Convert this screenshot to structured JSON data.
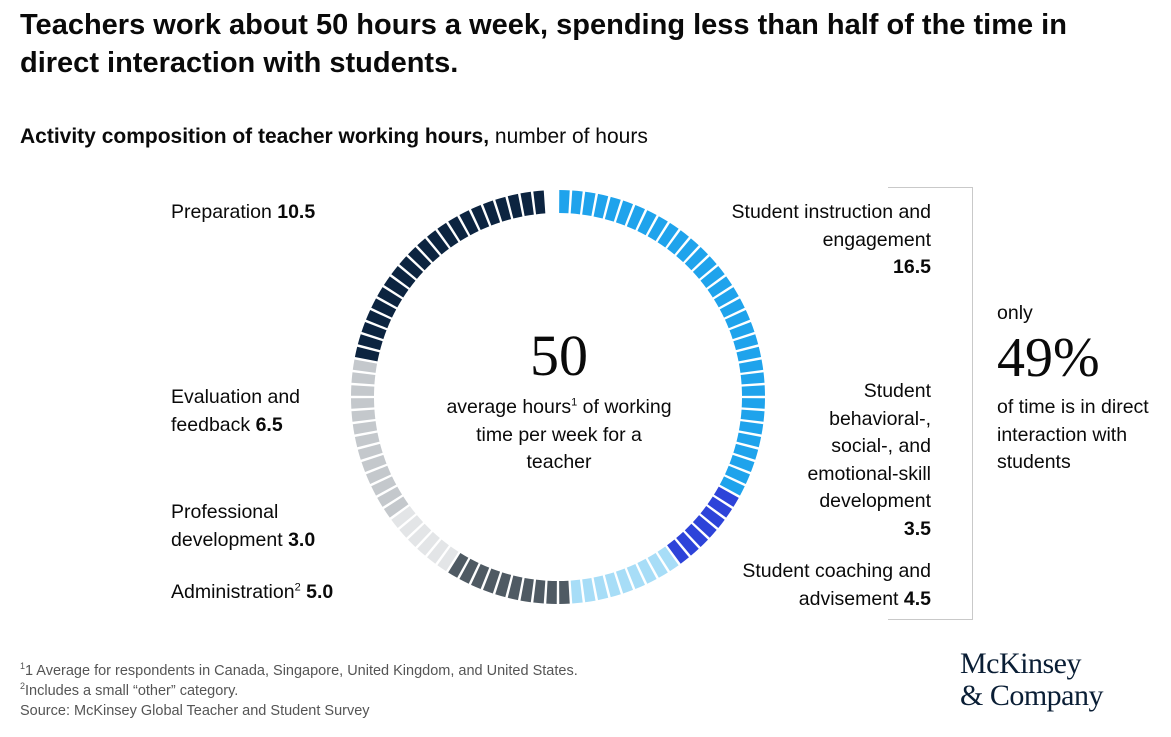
{
  "title": "Teachers work about 50 hours a week, spending less than half of the time in direct interaction with students.",
  "subtitle": {
    "bold": "Activity composition of teacher working hours,",
    "regular": " number of hours"
  },
  "center": {
    "value": "50",
    "text_before_sup": "average hours",
    "sup": "1",
    "text_after_sup": " of working time per week for a teacher"
  },
  "callout": {
    "only": "only",
    "percent": "49%",
    "text": "of time is in direct interaction with students"
  },
  "labels": {
    "preparation": {
      "name": "Preparation ",
      "value": "10.5"
    },
    "evaluation": {
      "name": "Evaluation and feedback ",
      "value": "6.5"
    },
    "professional": {
      "name": "Professional development ",
      "value": "3.0"
    },
    "administration": {
      "name": "Administration",
      "sup": "2",
      "value": "5.0"
    },
    "instruction": {
      "name": "Student instruction and engagement",
      "value": "16.5"
    },
    "behavioral": {
      "name": "Student behavioral-, social-, and emotional-skill development",
      "value": "3.5"
    },
    "coaching": {
      "name": "Student coaching and advisement ",
      "value": "4.5"
    }
  },
  "footnotes": {
    "f1_sup": "1",
    "f1": "1 Average for respondents in Canada, Singapore, United Kingdom, and United States.",
    "f2_sup": "2",
    "f2": "Includes a small “other” category.",
    "source": "Source: McKinsey Global Teacher and Student Survey"
  },
  "logo": {
    "line1": "McKinsey",
    "line2": "& Company"
  },
  "chart_data": {
    "type": "pie",
    "style": "segmented donut, 100 segments, clockwise from 12 o'clock",
    "total_hours": 50,
    "total_label": "50",
    "slices": [
      {
        "label": "Student instruction and engagement",
        "value": 16.5,
        "color": "#1fa3ec"
      },
      {
        "label": "Student behavioral-, social-, and emotional-skill development",
        "value": 3.5,
        "color": "#2d43d9"
      },
      {
        "label": "Student coaching and advisement",
        "value": 4.5,
        "color": "#a7ddf7"
      },
      {
        "label": "Administration",
        "value": 5.0,
        "color": "#4f5a63"
      },
      {
        "label": "Professional development",
        "value": 3.0,
        "color": "#e3e5e7"
      },
      {
        "label": "Evaluation and feedback",
        "value": 6.5,
        "color": "#c4c8cc"
      },
      {
        "label": "Preparation",
        "value": 10.5,
        "color": "#0c2440"
      }
    ],
    "callout_percent": 49
  }
}
